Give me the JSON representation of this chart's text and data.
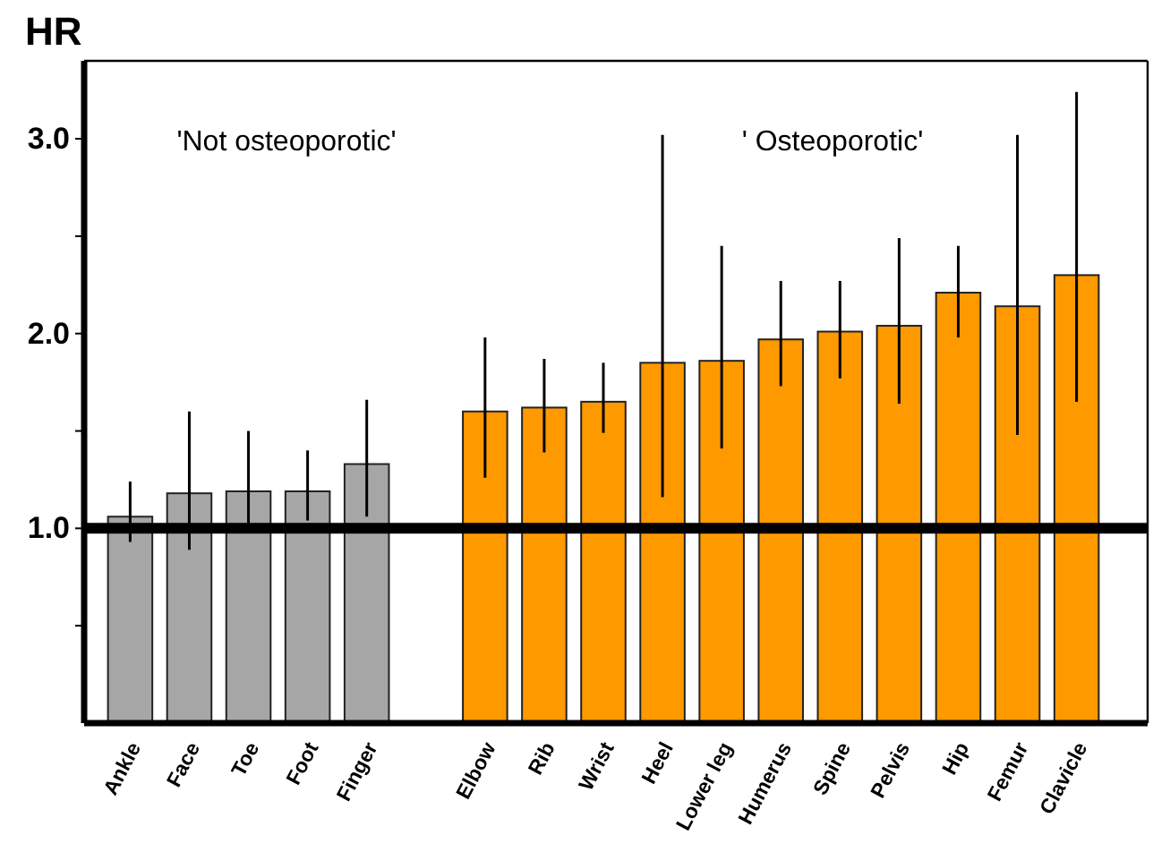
{
  "chart_data": {
    "type": "bar",
    "ylabel": "HR",
    "categories": [
      "Ankle",
      "Face",
      "Toe",
      "Foot",
      "Finger",
      null,
      "Elbow",
      "Rib",
      "Wrist",
      "Heel",
      "Lower leg",
      "Humerus",
      "Spine",
      "Pelvis",
      "Hip",
      "Femur",
      "Clavicle"
    ],
    "values": [
      1.06,
      1.18,
      1.19,
      1.19,
      1.33,
      null,
      1.6,
      1.62,
      1.65,
      1.85,
      1.86,
      1.97,
      2.01,
      2.04,
      2.21,
      2.14,
      2.3
    ],
    "errors": [
      [
        0.93,
        1.24
      ],
      [
        0.89,
        1.6
      ],
      [
        1.02,
        1.5
      ],
      [
        1.04,
        1.4
      ],
      [
        1.06,
        1.66
      ],
      null,
      [
        1.26,
        1.98
      ],
      [
        1.39,
        1.87
      ],
      [
        1.49,
        1.85
      ],
      [
        1.16,
        3.02
      ],
      [
        1.41,
        2.45
      ],
      [
        1.73,
        2.27
      ],
      [
        1.77,
        2.27
      ],
      [
        1.64,
        2.49
      ],
      [
        1.98,
        2.45
      ],
      [
        1.48,
        3.02
      ],
      [
        1.65,
        3.24
      ]
    ],
    "colors": [
      "#a6a6a6",
      "#a6a6a6",
      "#a6a6a6",
      "#a6a6a6",
      "#a6a6a6",
      null,
      "#ff9900",
      "#ff9900",
      "#ff9900",
      "#ff9900",
      "#ff9900",
      "#ff9900",
      "#ff9900",
      "#ff9900",
      "#ff9900",
      "#ff9900",
      "#ff9900"
    ],
    "ylim": [
      0,
      3.4
    ],
    "yticks": [
      {
        "value": 0.5,
        "label": null
      },
      {
        "value": 1,
        "label": "1.0"
      },
      {
        "value": 1.5,
        "label": null
      },
      {
        "value": 2,
        "label": "2.0"
      },
      {
        "value": 2.5,
        "label": null
      },
      {
        "value": 3,
        "label": "3.0"
      }
    ],
    "ref_lines": [
      {
        "axis": "y",
        "value": 1.0,
        "color": "#000000"
      }
    ],
    "annotations": [
      "'Not osteoporotic'",
      "' Osteoporotic'"
    ],
    "grid": false
  }
}
